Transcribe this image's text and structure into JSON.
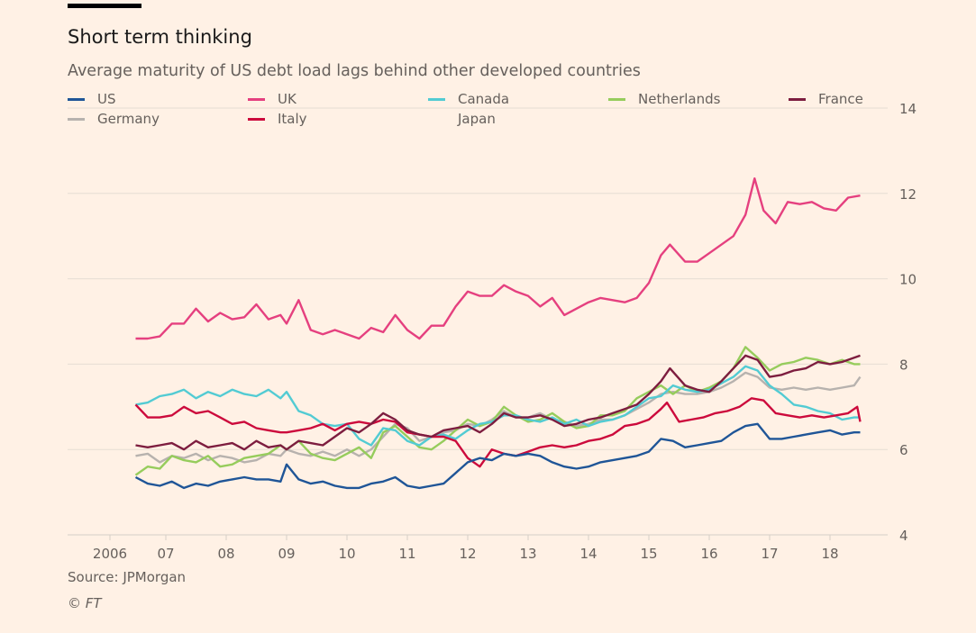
{
  "header": {
    "title": "Short term thinking",
    "subtitle": "Average maturity of US debt load lags behind other developed countries"
  },
  "footer": {
    "source": "Source: JPMorgan",
    "copyright": "© FT"
  },
  "chart_data": {
    "type": "line",
    "title": "Short term thinking",
    "subtitle": "Average maturity of US debt load lags behind other developed countries",
    "xlabel": "",
    "ylabel": "",
    "x_tick_labels": [
      "2006",
      "07",
      "08",
      "09",
      "10",
      "11",
      "12",
      "13",
      "14",
      "15",
      "16",
      "17",
      "18"
    ],
    "x_ticks": [
      2006.5,
      2007,
      2008,
      2009,
      2010,
      2011,
      2012,
      2013,
      2014,
      2015,
      2016,
      2017,
      2018
    ],
    "xlim": [
      2005.5,
      2018.75
    ],
    "y_ticks": [
      4,
      6,
      8,
      10,
      12,
      14
    ],
    "ylim": [
      4,
      14
    ],
    "y_axis_side": "right",
    "grid": true,
    "legend_position": "top",
    "series": [
      {
        "name": "US",
        "color": "#1f5597",
        "x": [
          2006.5,
          2006.7,
          2006.9,
          2007.1,
          2007.3,
          2007.5,
          2007.7,
          2007.9,
          2008.1,
          2008.3,
          2008.5,
          2008.7,
          2008.9,
          2009.0,
          2009.2,
          2009.4,
          2009.6,
          2009.8,
          2010.0,
          2010.2,
          2010.4,
          2010.6,
          2010.8,
          2011.0,
          2011.2,
          2011.4,
          2011.6,
          2011.8,
          2012.0,
          2012.2,
          2012.4,
          2012.6,
          2012.8,
          2013.0,
          2013.2,
          2013.4,
          2013.6,
          2013.8,
          2014.0,
          2014.2,
          2014.4,
          2014.6,
          2014.8,
          2015.0,
          2015.2,
          2015.4,
          2015.6,
          2015.8,
          2016.0,
          2016.2,
          2016.4,
          2016.6,
          2016.8,
          2017.0,
          2017.2,
          2017.4,
          2017.6,
          2017.8,
          2018.0,
          2018.2,
          2018.4,
          2018.5
        ],
        "values": [
          5.35,
          5.2,
          5.15,
          5.25,
          5.1,
          5.2,
          5.15,
          5.25,
          5.3,
          5.35,
          5.3,
          5.3,
          5.25,
          5.65,
          5.3,
          5.2,
          5.25,
          5.15,
          5.1,
          5.1,
          5.2,
          5.25,
          5.35,
          5.15,
          5.1,
          5.15,
          5.2,
          5.45,
          5.7,
          5.8,
          5.75,
          5.9,
          5.85,
          5.9,
          5.85,
          5.7,
          5.6,
          5.55,
          5.6,
          5.7,
          5.75,
          5.8,
          5.85,
          5.95,
          6.25,
          6.2,
          6.05,
          6.1,
          6.15,
          6.2,
          6.4,
          6.55,
          6.6,
          6.25,
          6.25,
          6.3,
          6.35,
          6.4,
          6.45,
          6.35,
          6.4,
          6.4
        ]
      },
      {
        "name": "UK",
        "color": "#e5407f",
        "x": [
          2006.5,
          2006.7,
          2006.9,
          2007.1,
          2007.3,
          2007.5,
          2007.7,
          2007.9,
          2008.1,
          2008.3,
          2008.5,
          2008.7,
          2008.9,
          2009.0,
          2009.2,
          2009.4,
          2009.6,
          2009.8,
          2010.0,
          2010.2,
          2010.4,
          2010.6,
          2010.8,
          2011.0,
          2011.2,
          2011.4,
          2011.6,
          2011.8,
          2012.0,
          2012.2,
          2012.4,
          2012.6,
          2012.8,
          2013.0,
          2013.2,
          2013.4,
          2013.6,
          2013.8,
          2014.0,
          2014.2,
          2014.4,
          2014.6,
          2014.8,
          2015.0,
          2015.2,
          2015.35,
          2015.6,
          2015.8,
          2016.0,
          2016.2,
          2016.4,
          2016.6,
          2016.75,
          2016.9,
          2017.1,
          2017.3,
          2017.5,
          2017.7,
          2017.9,
          2018.1,
          2018.3,
          2018.5
        ],
        "values": [
          8.6,
          8.6,
          8.65,
          8.95,
          8.95,
          9.3,
          9.0,
          9.2,
          9.05,
          9.1,
          9.4,
          9.05,
          9.15,
          8.95,
          9.5,
          8.8,
          8.7,
          8.8,
          8.7,
          8.6,
          8.85,
          8.75,
          9.15,
          8.8,
          8.6,
          8.9,
          8.9,
          9.35,
          9.7,
          9.6,
          9.6,
          9.85,
          9.7,
          9.6,
          9.35,
          9.55,
          9.15,
          9.3,
          9.45,
          9.55,
          9.5,
          9.45,
          9.55,
          9.9,
          10.55,
          10.8,
          10.4,
          10.4,
          10.6,
          10.8,
          11.0,
          11.5,
          12.35,
          11.6,
          11.3,
          11.8,
          11.75,
          11.8,
          11.65,
          11.6,
          11.9,
          11.95
        ]
      },
      {
        "name": "Canada",
        "color": "#52cbd3",
        "x": [
          2006.5,
          2006.7,
          2006.9,
          2007.1,
          2007.3,
          2007.5,
          2007.7,
          2007.9,
          2008.1,
          2008.3,
          2008.5,
          2008.7,
          2008.9,
          2009.0,
          2009.2,
          2009.4,
          2009.6,
          2009.8,
          2010.0,
          2010.2,
          2010.4,
          2010.6,
          2010.8,
          2011.0,
          2011.2,
          2011.4,
          2011.6,
          2011.8,
          2012.0,
          2012.2,
          2012.4,
          2012.6,
          2012.8,
          2013.0,
          2013.2,
          2013.4,
          2013.6,
          2013.8,
          2014.0,
          2014.2,
          2014.4,
          2014.6,
          2014.8,
          2015.0,
          2015.2,
          2015.4,
          2015.6,
          2015.8,
          2016.0,
          2016.2,
          2016.4,
          2016.6,
          2016.8,
          2017.0,
          2017.2,
          2017.4,
          2017.6,
          2017.8,
          2018.0,
          2018.2,
          2018.4,
          2018.5
        ],
        "values": [
          7.05,
          7.1,
          7.25,
          7.3,
          7.4,
          7.2,
          7.35,
          7.25,
          7.4,
          7.3,
          7.25,
          7.4,
          7.2,
          7.35,
          6.9,
          6.8,
          6.6,
          6.55,
          6.6,
          6.25,
          6.1,
          6.5,
          6.45,
          6.2,
          6.1,
          6.3,
          6.35,
          6.25,
          6.45,
          6.6,
          6.65,
          6.8,
          6.8,
          6.7,
          6.65,
          6.75,
          6.6,
          6.7,
          6.55,
          6.65,
          6.7,
          6.8,
          7.0,
          7.2,
          7.25,
          7.5,
          7.4,
          7.35,
          7.4,
          7.55,
          7.7,
          7.95,
          7.85,
          7.5,
          7.3,
          7.05,
          7.0,
          6.9,
          6.85,
          6.7,
          6.75,
          6.75
        ]
      },
      {
        "name": "Netherlands",
        "color": "#96cc5c",
        "x": [
          2006.5,
          2006.7,
          2006.9,
          2007.1,
          2007.3,
          2007.5,
          2007.7,
          2007.9,
          2008.1,
          2008.3,
          2008.5,
          2008.7,
          2008.9,
          2009.0,
          2009.2,
          2009.4,
          2009.6,
          2009.8,
          2010.0,
          2010.2,
          2010.4,
          2010.6,
          2010.8,
          2011.0,
          2011.2,
          2011.4,
          2011.6,
          2011.8,
          2012.0,
          2012.2,
          2012.4,
          2012.6,
          2012.8,
          2013.0,
          2013.2,
          2013.4,
          2013.6,
          2013.8,
          2014.0,
          2014.2,
          2014.4,
          2014.6,
          2014.8,
          2015.0,
          2015.2,
          2015.4,
          2015.6,
          2015.8,
          2016.0,
          2016.2,
          2016.4,
          2016.6,
          2016.8,
          2017.0,
          2017.2,
          2017.4,
          2017.6,
          2017.8,
          2018.0,
          2018.2,
          2018.4,
          2018.5
        ],
        "values": [
          5.4,
          5.6,
          5.55,
          5.85,
          5.75,
          5.7,
          5.85,
          5.6,
          5.65,
          5.8,
          5.85,
          5.9,
          6.1,
          6.0,
          6.2,
          5.9,
          5.8,
          5.75,
          5.9,
          6.05,
          5.8,
          6.4,
          6.55,
          6.3,
          6.05,
          6.0,
          6.2,
          6.45,
          6.7,
          6.55,
          6.65,
          7.0,
          6.8,
          6.65,
          6.7,
          6.85,
          6.65,
          6.5,
          6.55,
          6.8,
          6.8,
          6.9,
          7.2,
          7.35,
          7.5,
          7.3,
          7.5,
          7.35,
          7.45,
          7.6,
          7.9,
          8.4,
          8.15,
          7.85,
          8.0,
          8.05,
          8.15,
          8.1,
          8.0,
          8.1,
          8.0,
          8.0
        ]
      },
      {
        "name": "France",
        "color": "#7d1d3f",
        "x": [
          2006.5,
          2006.7,
          2006.9,
          2007.1,
          2007.3,
          2007.5,
          2007.7,
          2007.9,
          2008.1,
          2008.3,
          2008.5,
          2008.7,
          2008.9,
          2009.0,
          2009.2,
          2009.4,
          2009.6,
          2009.8,
          2010.0,
          2010.2,
          2010.4,
          2010.6,
          2010.8,
          2011.0,
          2011.2,
          2011.4,
          2011.6,
          2011.8,
          2012.0,
          2012.2,
          2012.4,
          2012.6,
          2012.8,
          2013.0,
          2013.2,
          2013.4,
          2013.6,
          2013.8,
          2014.0,
          2014.2,
          2014.4,
          2014.6,
          2014.8,
          2015.0,
          2015.2,
          2015.35,
          2015.6,
          2015.8,
          2016.0,
          2016.2,
          2016.4,
          2016.6,
          2016.8,
          2017.0,
          2017.2,
          2017.4,
          2017.6,
          2017.8,
          2018.0,
          2018.2,
          2018.4,
          2018.5
        ],
        "values": [
          6.1,
          6.05,
          6.1,
          6.15,
          6.0,
          6.2,
          6.05,
          6.1,
          6.15,
          6.0,
          6.2,
          6.05,
          6.1,
          6.0,
          6.2,
          6.15,
          6.1,
          6.3,
          6.5,
          6.4,
          6.6,
          6.85,
          6.7,
          6.45,
          6.35,
          6.3,
          6.45,
          6.5,
          6.55,
          6.4,
          6.6,
          6.85,
          6.75,
          6.75,
          6.8,
          6.7,
          6.55,
          6.6,
          6.7,
          6.75,
          6.85,
          6.95,
          7.05,
          7.3,
          7.6,
          7.9,
          7.5,
          7.4,
          7.35,
          7.6,
          7.9,
          8.2,
          8.1,
          7.7,
          7.75,
          7.85,
          7.9,
          8.05,
          8.0,
          8.05,
          8.15,
          8.2
        ]
      },
      {
        "name": "Germany",
        "color": "#b7b2ae",
        "x": [
          2006.5,
          2006.7,
          2006.9,
          2007.1,
          2007.3,
          2007.5,
          2007.7,
          2007.9,
          2008.1,
          2008.3,
          2008.5,
          2008.7,
          2008.9,
          2009.0,
          2009.2,
          2009.4,
          2009.6,
          2009.8,
          2010.0,
          2010.2,
          2010.4,
          2010.6,
          2010.8,
          2011.0,
          2011.2,
          2011.4,
          2011.6,
          2011.8,
          2012.0,
          2012.2,
          2012.4,
          2012.6,
          2012.8,
          2013.0,
          2013.2,
          2013.4,
          2013.6,
          2013.8,
          2014.0,
          2014.2,
          2014.4,
          2014.6,
          2014.8,
          2015.0,
          2015.2,
          2015.4,
          2015.6,
          2015.8,
          2016.0,
          2016.2,
          2016.4,
          2016.6,
          2016.8,
          2017.0,
          2017.2,
          2017.4,
          2017.6,
          2017.8,
          2018.0,
          2018.2,
          2018.4,
          2018.5
        ],
        "values": [
          5.85,
          5.9,
          5.7,
          5.85,
          5.8,
          5.9,
          5.75,
          5.85,
          5.8,
          5.7,
          5.75,
          5.9,
          5.85,
          6.0,
          5.9,
          5.85,
          5.95,
          5.85,
          6.0,
          5.85,
          6.0,
          6.3,
          6.6,
          6.5,
          6.2,
          6.3,
          6.4,
          6.45,
          6.6,
          6.55,
          6.7,
          6.9,
          6.75,
          6.75,
          6.85,
          6.7,
          6.65,
          6.55,
          6.6,
          6.7,
          6.7,
          6.8,
          6.95,
          7.1,
          7.3,
          7.35,
          7.3,
          7.3,
          7.35,
          7.45,
          7.6,
          7.8,
          7.7,
          7.45,
          7.4,
          7.45,
          7.4,
          7.45,
          7.4,
          7.45,
          7.5,
          7.7
        ]
      },
      {
        "name": "Italy",
        "color": "#cc0a3c",
        "x": [
          2006.5,
          2006.7,
          2006.9,
          2007.1,
          2007.3,
          2007.5,
          2007.7,
          2007.9,
          2008.1,
          2008.3,
          2008.5,
          2008.7,
          2008.9,
          2009.0,
          2009.2,
          2009.4,
          2009.6,
          2009.8,
          2010.0,
          2010.2,
          2010.4,
          2010.6,
          2010.8,
          2011.0,
          2011.2,
          2011.4,
          2011.6,
          2011.8,
          2012.0,
          2012.2,
          2012.4,
          2012.6,
          2012.8,
          2013.0,
          2013.2,
          2013.4,
          2013.6,
          2013.8,
          2014.0,
          2014.2,
          2014.4,
          2014.6,
          2014.8,
          2015.0,
          2015.2,
          2015.3,
          2015.5,
          2015.7,
          2015.9,
          2016.1,
          2016.3,
          2016.5,
          2016.7,
          2016.9,
          2017.1,
          2017.3,
          2017.5,
          2017.7,
          2017.9,
          2018.1,
          2018.3,
          2018.45,
          2018.5
        ],
        "values": [
          7.05,
          6.75,
          6.75,
          6.8,
          7.0,
          6.85,
          6.9,
          6.75,
          6.6,
          6.65,
          6.5,
          6.45,
          6.4,
          6.4,
          6.45,
          6.5,
          6.6,
          6.45,
          6.6,
          6.65,
          6.6,
          6.7,
          6.65,
          6.4,
          6.35,
          6.3,
          6.3,
          6.2,
          5.8,
          5.6,
          6.0,
          5.9,
          5.85,
          5.95,
          6.05,
          6.1,
          6.05,
          6.1,
          6.2,
          6.25,
          6.35,
          6.55,
          6.6,
          6.7,
          6.95,
          7.1,
          6.65,
          6.7,
          6.75,
          6.85,
          6.9,
          7.0,
          7.2,
          7.15,
          6.85,
          6.8,
          6.75,
          6.8,
          6.75,
          6.8,
          6.85,
          7.0,
          6.65
        ]
      }
    ]
  }
}
